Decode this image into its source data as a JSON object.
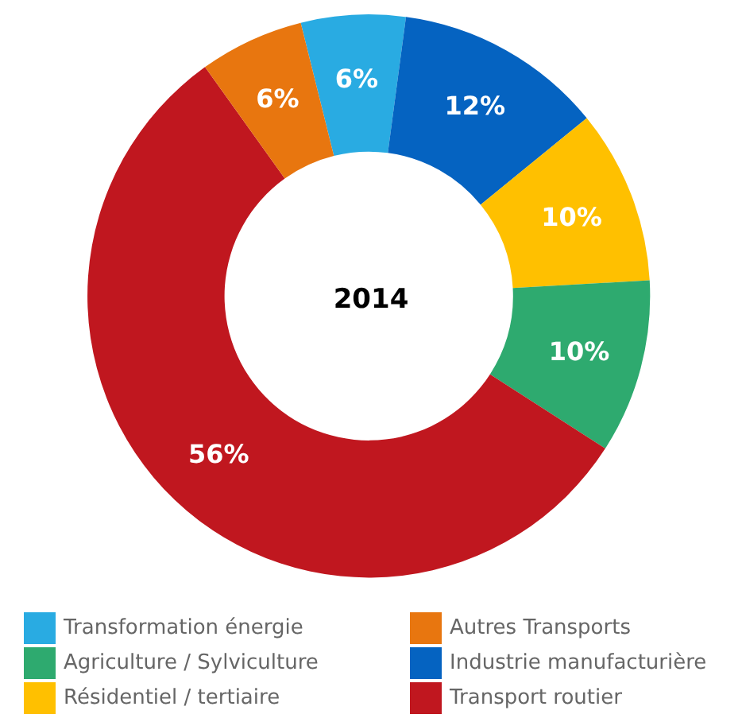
{
  "chart_data": {
    "type": "donut",
    "title": "2014",
    "categories": [
      "Transformation énergie",
      "Industrie manufacturière",
      "Résidentiel / tertiaire",
      "Agriculture / Sylviculture",
      "Transport routier",
      "Autres Transports"
    ],
    "values": [
      6,
      12,
      10,
      10,
      56,
      6
    ],
    "value_labels": [
      "6%",
      "12%",
      "10%",
      "10%",
      "56%",
      "6%"
    ],
    "colors": [
      "#29abe2",
      "#0563c1",
      "#ffc000",
      "#2eaa6f",
      "#c0171f",
      "#e8760f"
    ],
    "legend": "bottom"
  }
}
